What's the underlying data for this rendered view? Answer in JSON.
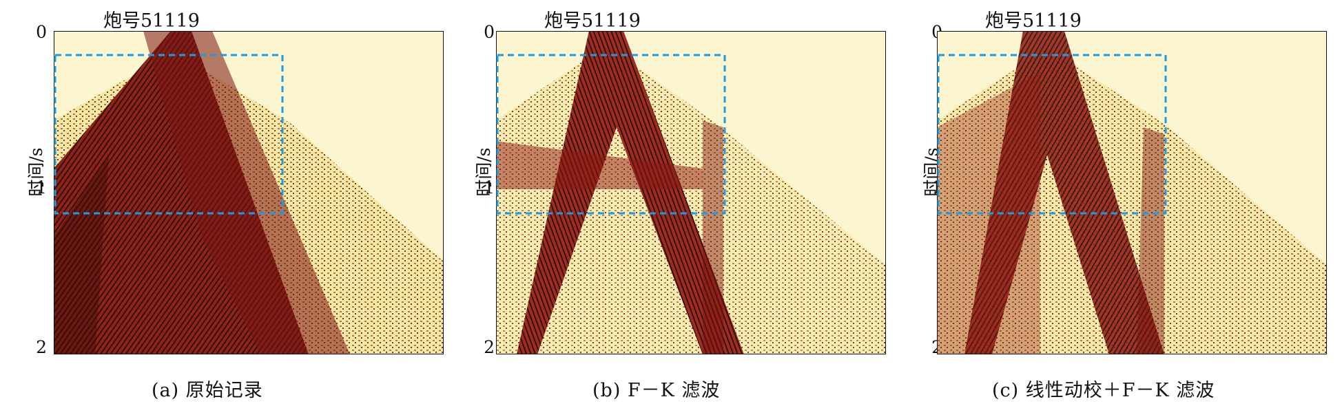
{
  "panels": [
    {
      "shot_label": "炮号51119",
      "y_axis_label": "时间/s",
      "y_ticks": [
        "0",
        "1",
        "2"
      ],
      "caption": "(a) 原始记录"
    },
    {
      "shot_label": "炮号51119",
      "y_axis_label": "时间/s",
      "y_ticks": [
        "0",
        "1",
        "2"
      ],
      "caption": "(b) F－K 滤波"
    },
    {
      "shot_label": "炮号51119",
      "y_axis_label": "时间/s",
      "y_ticks": [
        "0",
        "1",
        "2"
      ],
      "caption": "(c) 线性动校＋F－K 滤波"
    }
  ],
  "colors": {
    "background": "#fbf6cf",
    "seismic_dark": "#7a1410",
    "seismic_mid": "#c0392b",
    "highlight_box": "#1f9be0"
  },
  "y_axis": {
    "min": 0,
    "max": 2,
    "unit": "s"
  }
}
